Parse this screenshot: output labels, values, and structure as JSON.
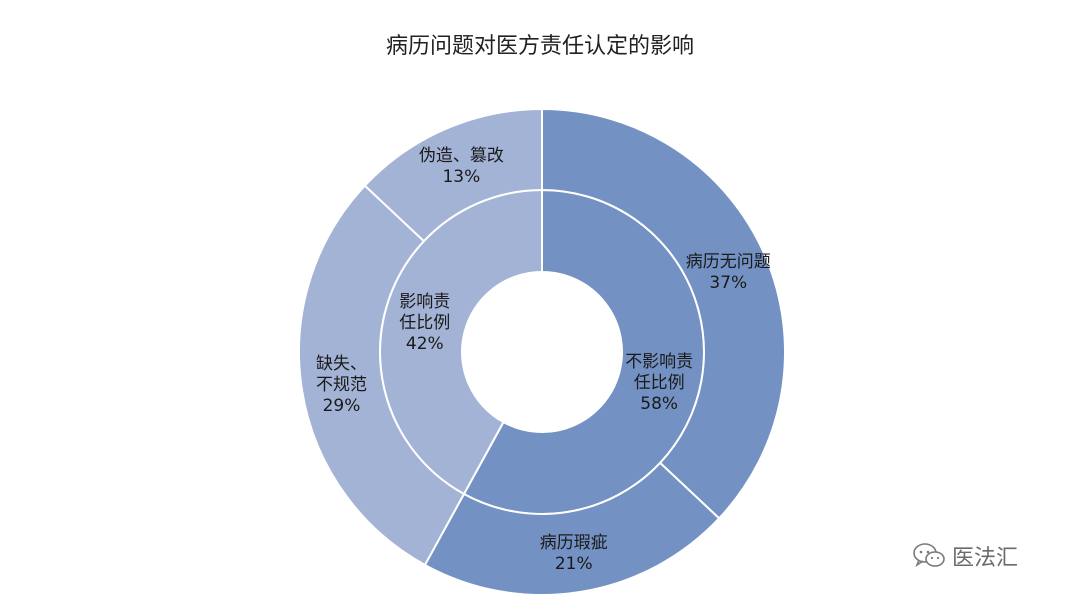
{
  "watermark": {
    "text": "医法汇",
    "icon": "wechat-icon"
  },
  "colors": {
    "background": "#ffffff",
    "stroke": "#ffffff",
    "inner_no_influence": "#7391c3",
    "inner_influence": "#a3b3d5",
    "outer_no_problem": "#7391c3",
    "outer_flaw": "#7391c3",
    "outer_missing": "#a3b3d5",
    "outer_forged": "#a3b3d5"
  },
  "chart_data": {
    "type": "pie",
    "title": "病历问题对医方责任认定的影响",
    "rings": [
      {
        "name": "",
        "slices": [
          {
            "label_lines": [
              "不影响责",
              "任比例"
            ],
            "value": 58,
            "value_label": "58%",
            "color_key": "inner_no_influence"
          },
          {
            "label_lines": [
              "影响责",
              "任比例"
            ],
            "value": 42,
            "value_label": "42%",
            "color_key": "inner_influence"
          }
        ]
      },
      {
        "name": "",
        "slices": [
          {
            "label_lines": [
              "病历无问题"
            ],
            "value": 37,
            "value_label": "37%",
            "color_key": "outer_no_problem"
          },
          {
            "label_lines": [
              "病历瑕疵"
            ],
            "value": 21,
            "value_label": "21%",
            "color_key": "outer_flaw"
          },
          {
            "label_lines": [
              "缺失、",
              "不规范"
            ],
            "value": 29,
            "value_label": "29%",
            "color_key": "outer_missing"
          },
          {
            "label_lines": [
              "伪造、篡改"
            ],
            "value": 13,
            "value_label": "13%",
            "color_key": "outer_forged"
          }
        ]
      }
    ]
  }
}
